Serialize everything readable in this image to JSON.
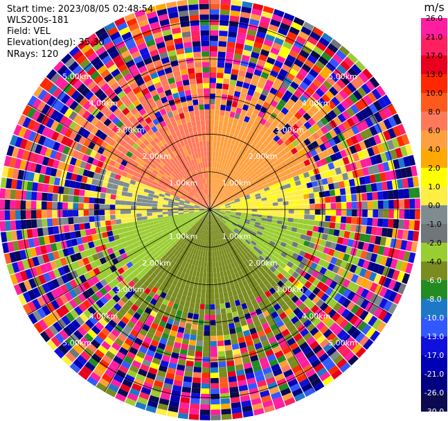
{
  "header": {
    "start_time": "Start time: 2023/08/05 02:48:54",
    "instrument": "WLS200s-181",
    "field": "Field: VEL",
    "elevation": "Elevation(deg): 35.30",
    "nrays": "NRays: 120"
  },
  "chart_data": {
    "type": "heatmap",
    "projection": "polar-ppi",
    "n_rays": 120,
    "n_range_gates": 40,
    "max_range_km": 5.6,
    "range_rings_km": [
      1,
      2,
      3,
      4,
      5
    ],
    "ring_labels": [
      "1.00km",
      "2.00km",
      "3.00km",
      "4.00km",
      "5.00km"
    ],
    "spoke_angles_deg": [
      0,
      30,
      60,
      90,
      120,
      150,
      180,
      210,
      240,
      270,
      300,
      330
    ],
    "colorbar": {
      "unit": "m/s",
      "tick_labels": [
        "26.0",
        "21.0",
        "17.0",
        "13.0",
        "10.0",
        "8.0",
        "6.0",
        "4.0",
        "2.0",
        "1.0",
        "0.0",
        "-1.0",
        "-2.0",
        "-4.0",
        "-6.0",
        "-8.0",
        "-10.0",
        "-13.0",
        "-17.0",
        "-21.0",
        "-26.0",
        "-30.0"
      ],
      "colors": [
        "#ff1ea0",
        "#ff2060",
        "#e8001e",
        "#ff2800",
        "#ff5a1e",
        "#ff7a5a",
        "#ffa040",
        "#ffa800",
        "#ffff00",
        "#ffee44",
        "#7f8c8f",
        "#70767a",
        "#9acd32",
        "#7a8c20",
        "#228b22",
        "#1e78c8",
        "#3258ff",
        "#1010dc",
        "#0000b4",
        "#000080",
        "#0a0a50"
      ]
    },
    "velocity_pattern": {
      "near_range_km": 2.5,
      "near_field": [
        {
          "azimuth_from_deg": 290,
          "azimuth_to_deg": 360,
          "velocity_ms": 6.5
        },
        {
          "azimuth_from_deg": 0,
          "azimuth_to_deg": 70,
          "velocity_ms": 5.0
        },
        {
          "azimuth_from_deg": 70,
          "azimuth_to_deg": 95,
          "velocity_ms": 0.5
        },
        {
          "azimuth_from_deg": 95,
          "azimuth_to_deg": 135,
          "velocity_ms": -2.5
        },
        {
          "azimuth_from_deg": 135,
          "azimuth_to_deg": 225,
          "velocity_ms": -5.0
        },
        {
          "azimuth_from_deg": 225,
          "azimuth_to_deg": 262,
          "velocity_ms": -3.0
        },
        {
          "azimuth_from_deg": 262,
          "azimuth_to_deg": 290,
          "velocity_ms": 0.0
        }
      ],
      "far_field": "noise"
    }
  }
}
